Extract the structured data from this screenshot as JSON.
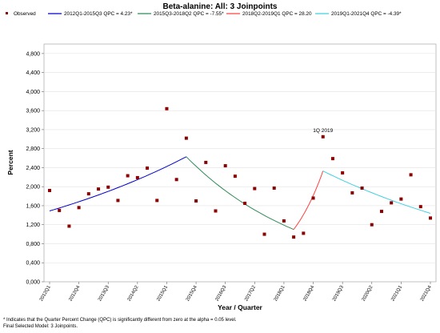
{
  "chart_data": {
    "type": "scatter",
    "title": "Beta-alanine: All: 3 Joinpoints",
    "xlabel": "Year / Quarter",
    "ylabel": "Percent",
    "ylim": [
      0,
      5000
    ],
    "yticks": [
      "0,000",
      "0,400",
      "0,800",
      "1,200",
      "1,600",
      "2,000",
      "2,400",
      "2,800",
      "3,200",
      "3,600",
      "4,000",
      "4,400",
      "4,800"
    ],
    "xticks": [
      "2012Q1",
      "2012Q4",
      "2013Q3",
      "2014Q2",
      "2015Q1",
      "2015Q4",
      "2016Q3",
      "2017Q2",
      "2018Q1",
      "2018Q4",
      "2019Q3",
      "2020Q2",
      "2021Q1",
      "2021Q4"
    ],
    "grid": "horizontal",
    "legend_placement": "top",
    "observed": {
      "name": "Observed",
      "color": "#8b0000",
      "values": [
        1.92,
        1.5,
        1.17,
        1.56,
        1.85,
        1.95,
        1.99,
        1.71,
        2.23,
        2.19,
        2.39,
        1.71,
        3.64,
        2.15,
        3.02,
        1.7,
        2.51,
        1.49,
        2.44,
        2.22,
        1.65,
        1.96,
        1.0,
        1.97,
        1.28,
        0.94,
        1.02,
        1.76,
        3.05,
        2.59,
        2.29,
        1.87,
        1.97,
        1.2,
        1.48,
        1.66,
        1.74,
        2.25,
        1.58,
        1.34
      ]
    },
    "series": [
      {
        "name": "2012Q1-2015Q3 QPC = 4.23*",
        "color": "#0000cd",
        "start": 1,
        "end": 15,
        "y_start": 1.49,
        "y_end": 2.63
      },
      {
        "name": "2015Q3-2018Q2 QPC = -7.55*",
        "color": "#2e8b57",
        "start": 15,
        "end": 26,
        "y_start": 2.63,
        "y_end": 1.1
      },
      {
        "name": "2018Q2-2019Q1 QPC = 28.20",
        "color": "#ff4040",
        "start": 26,
        "end": 29,
        "y_start": 1.1,
        "y_end": 2.33
      },
      {
        "name": "2019Q1-2021Q4 QPC = -4.39*",
        "color": "#40d0e0",
        "start": 29,
        "end": 40,
        "y_start": 2.33,
        "y_end": 1.44
      }
    ],
    "annotations": [
      {
        "text": "1Q 2019",
        "at_index": 29
      }
    ]
  },
  "footnotes": {
    "line1": "* Indicates that the Quarter Percent Change (QPC) is significantly different from zero at the alpha = 0.05 level.",
    "line2": "Final Selected Model: 3 Joinpoints."
  }
}
